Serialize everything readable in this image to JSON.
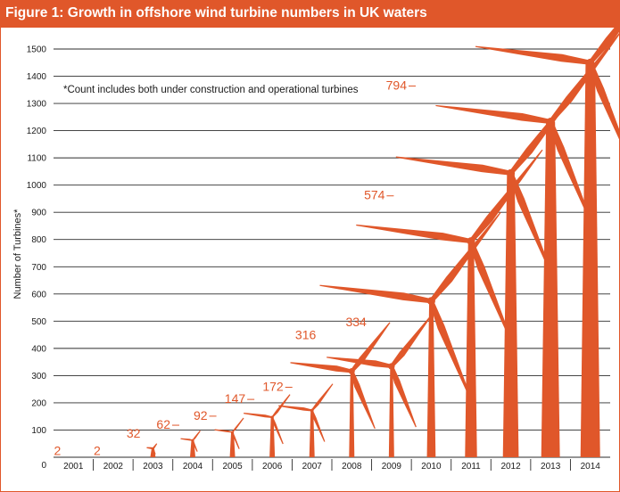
{
  "colors": {
    "accent": "#e0572a",
    "grid": "#2b2b2b",
    "text": "#1a1a1a",
    "background": "#ffffff"
  },
  "header": {
    "title": "Figure 1: Growth in offshore wind turbine numbers in UK waters"
  },
  "chart_data": {
    "type": "bar",
    "title": "Figure 1: Growth in offshore wind turbine numbers in UK waters",
    "xlabel": "",
    "ylabel": "Number of Turbines*",
    "ylim": [
      0,
      1500
    ],
    "yticks": [
      0,
      100,
      200,
      300,
      400,
      500,
      600,
      700,
      800,
      900,
      1000,
      1100,
      1200,
      1300,
      1400,
      1500
    ],
    "categories": [
      "2001",
      "2002",
      "2003",
      "2004",
      "2005",
      "2006",
      "2007",
      "2008",
      "2009",
      "2010",
      "2011",
      "2012",
      "2013",
      "2014"
    ],
    "values": [
      2,
      2,
      32,
      62,
      92,
      147,
      172,
      316,
      334,
      574,
      794,
      1044,
      1233,
      1450
    ],
    "annotation": "*Count includes both under construction and operational turbines",
    "grid": true,
    "marker": "wind-turbine"
  }
}
